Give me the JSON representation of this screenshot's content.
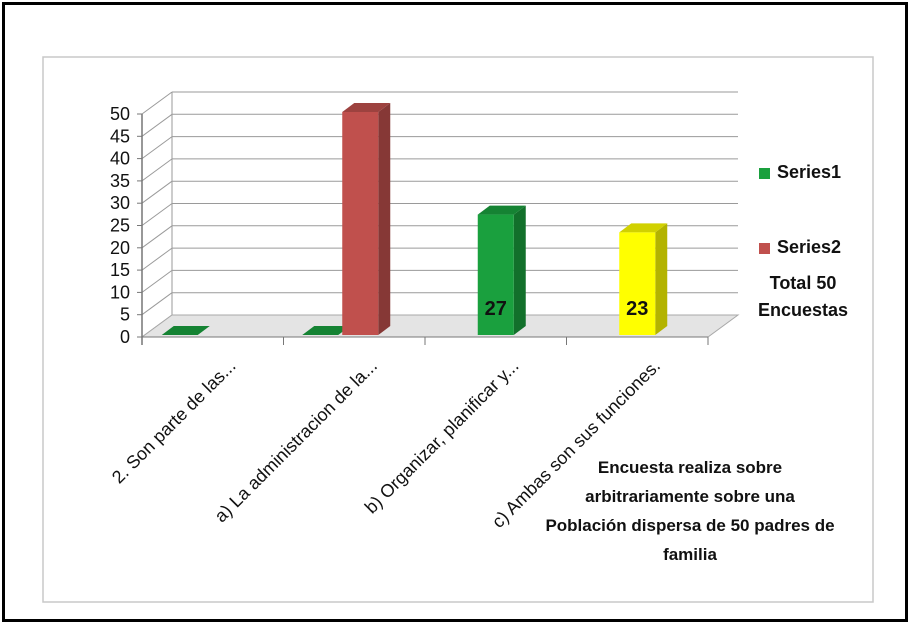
{
  "chart_data": {
    "type": "bar",
    "categories": [
      "2. Son  parte de las...",
      "a) La administracion de la...",
      "b) Organizar, planificar y...",
      "c) Ambas son sus funciones."
    ],
    "series": [
      {
        "name": "Series1",
        "values": [
          0,
          0,
          27,
          23
        ]
      },
      {
        "name": "Series2",
        "values": [
          null,
          50,
          null,
          null
        ]
      }
    ],
    "data_labels": [
      "",
      "",
      "27",
      "23"
    ],
    "y_ticks": [
      "0",
      "5",
      "10",
      "15",
      "20",
      "25",
      "30",
      "35",
      "40",
      "45",
      "50"
    ],
    "ylim": [
      0,
      50
    ],
    "grid": true,
    "legend_position": "right",
    "three_d": true
  },
  "colors": {
    "series1": "#1aa03e",
    "series2": "#c0504d",
    "highlight": "#ffff00",
    "floor": "#e4e4e4"
  },
  "total_note": [
    "Total 50",
    "Encuestas"
  ],
  "footnote": [
    "Encuesta  realiza sobre",
    "arbitrariamente  sobre una",
    "Población  dispersa de 50 padres de",
    "familia"
  ]
}
